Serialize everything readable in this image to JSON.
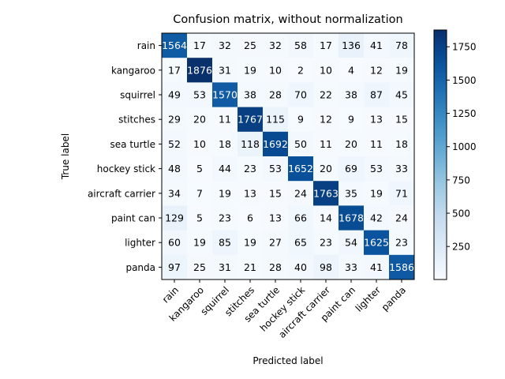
{
  "chart_data": {
    "type": "heatmap",
    "title": "Confusion matrix, without normalization",
    "xlabel": "Predicted label",
    "ylabel": "True label",
    "x_labels": [
      "rain",
      "kangaroo",
      "squirrel",
      "stitches",
      "sea turtle",
      "hockey stick",
      "aircraft carrier",
      "paint can",
      "lighter",
      "panda"
    ],
    "y_labels": [
      "rain",
      "kangaroo",
      "squirrel",
      "stitches",
      "sea turtle",
      "hockey stick",
      "aircraft carrier",
      "paint can",
      "lighter",
      "panda"
    ],
    "matrix": [
      [
        1564,
        17,
        32,
        25,
        32,
        58,
        17,
        136,
        41,
        78
      ],
      [
        17,
        1876,
        31,
        19,
        10,
        2,
        10,
        4,
        12,
        19
      ],
      [
        49,
        53,
        1570,
        38,
        28,
        70,
        22,
        38,
        87,
        45
      ],
      [
        29,
        20,
        11,
        1767,
        115,
        9,
        12,
        9,
        13,
        15
      ],
      [
        52,
        10,
        18,
        118,
        1692,
        50,
        11,
        20,
        11,
        18
      ],
      [
        48,
        5,
        44,
        23,
        53,
        1652,
        20,
        69,
        53,
        33
      ],
      [
        34,
        7,
        19,
        13,
        15,
        24,
        1763,
        35,
        19,
        71
      ],
      [
        129,
        5,
        23,
        6,
        13,
        66,
        14,
        1678,
        42,
        24
      ],
      [
        60,
        19,
        85,
        19,
        27,
        65,
        23,
        54,
        1625,
        23
      ],
      [
        97,
        25,
        31,
        21,
        28,
        40,
        98,
        33,
        41,
        1586
      ]
    ],
    "colormap": "Blues",
    "colorbar_ticks": [
      "250",
      "500",
      "750",
      "1000",
      "1250",
      "1500",
      "1750"
    ],
    "colorbar_range": [
      2,
      1876
    ],
    "text_color_light": "#ffffff",
    "text_color_dark": "#000000"
  }
}
